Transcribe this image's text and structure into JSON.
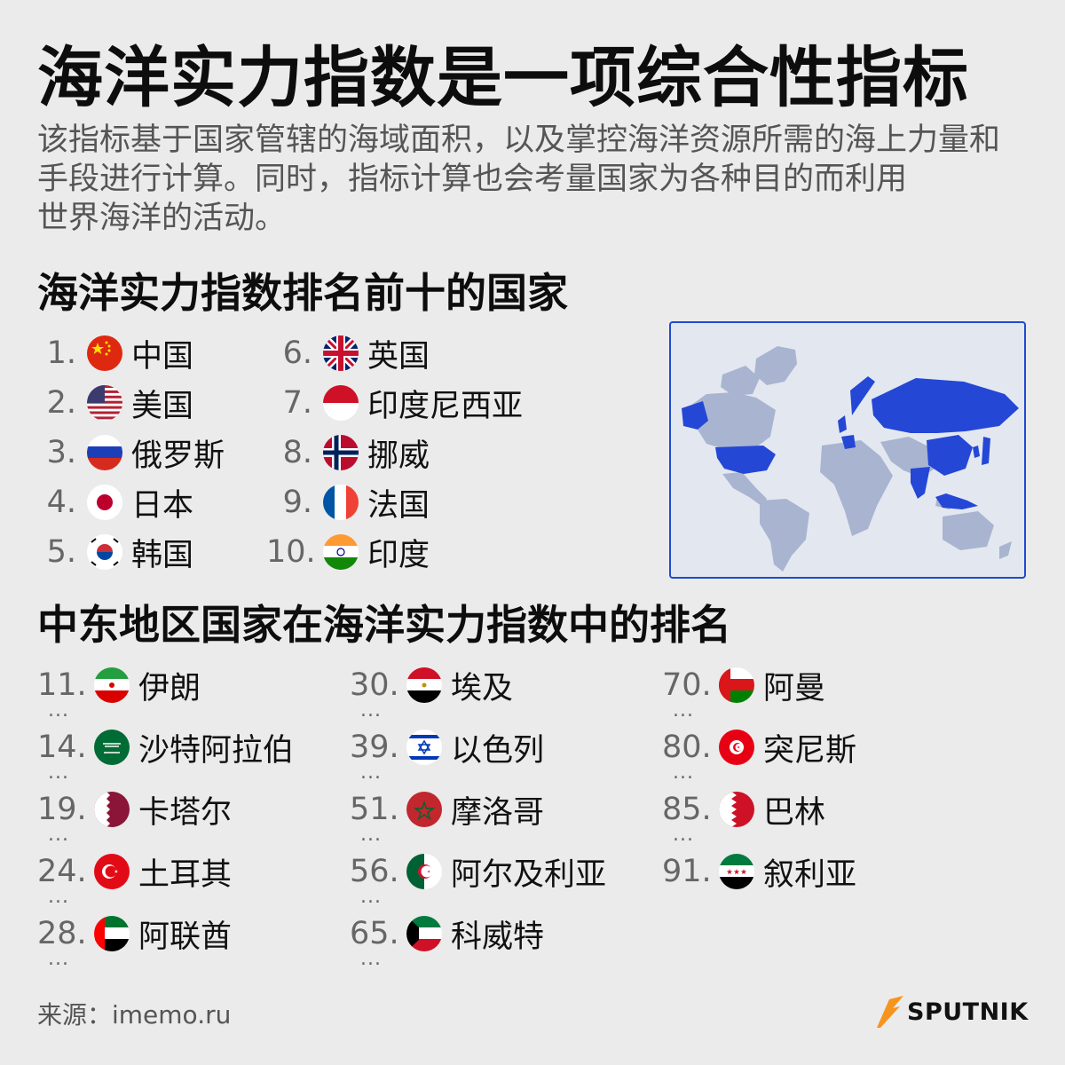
{
  "title": "海洋实力指数是一项综合性指标",
  "description": [
    "该指标基于国家管辖的海域面积，以及掌控海洋资源所需的海上力量和",
    "手段进行计算。同时，指标计算也会考量国家为各种目的而利用",
    "世界海洋的活动。"
  ],
  "top_ten": {
    "heading": "海洋实力指数排名前十的国家",
    "items": [
      {
        "rank": "1.",
        "name": "中国",
        "flag": "china-flag-icon"
      },
      {
        "rank": "2.",
        "name": "美国",
        "flag": "usa-flag-icon"
      },
      {
        "rank": "3.",
        "name": "俄罗斯",
        "flag": "russia-flag-icon"
      },
      {
        "rank": "4.",
        "name": "日本",
        "flag": "japan-flag-icon"
      },
      {
        "rank": "5.",
        "name": "韩国",
        "flag": "korea-flag-icon"
      },
      {
        "rank": "6.",
        "name": "英国",
        "flag": "uk-flag-icon"
      },
      {
        "rank": "7.",
        "name": "印度尼西亚",
        "flag": "indonesia-flag-icon"
      },
      {
        "rank": "8.",
        "name": "挪威",
        "flag": "norway-flag-icon"
      },
      {
        "rank": "9.",
        "name": "法国",
        "flag": "france-flag-icon"
      },
      {
        "rank": "10.",
        "name": "印度",
        "flag": "india-flag-icon"
      }
    ]
  },
  "middle_east": {
    "heading": "中东地区国家在海洋实力指数中的排名",
    "items": [
      {
        "rank": "11.",
        "name": "伊朗",
        "flag": "iran-flag-icon"
      },
      {
        "rank": "14.",
        "name": "沙特阿拉伯",
        "flag": "saudi-arabia-flag-icon"
      },
      {
        "rank": "19.",
        "name": "卡塔尔",
        "flag": "qatar-flag-icon"
      },
      {
        "rank": "24.",
        "name": "土耳其",
        "flag": "turkey-flag-icon"
      },
      {
        "rank": "28.",
        "name": "阿联酋",
        "flag": "uae-flag-icon"
      },
      {
        "rank": "30.",
        "name": "埃及",
        "flag": "egypt-flag-icon"
      },
      {
        "rank": "39.",
        "name": "以色列",
        "flag": "israel-flag-icon"
      },
      {
        "rank": "51.",
        "name": "摩洛哥",
        "flag": "morocco-flag-icon"
      },
      {
        "rank": "56.",
        "name": "阿尔及利亚",
        "flag": "algeria-flag-icon"
      },
      {
        "rank": "65.",
        "name": "科威特",
        "flag": "kuwait-flag-icon"
      },
      {
        "rank": "70.",
        "name": "阿曼",
        "flag": "oman-flag-icon"
      },
      {
        "rank": "80.",
        "name": "突尼斯",
        "flag": "tunisia-flag-icon"
      },
      {
        "rank": "85.",
        "name": "巴林",
        "flag": "bahrain-flag-icon"
      },
      {
        "rank": "91.",
        "name": "叙利亚",
        "flag": "syria-flag-icon"
      }
    ],
    "ellipsis": "..."
  },
  "map": {
    "icon": "world-map-icon",
    "highlight_color": "#2447d6",
    "land_color": "#a9b4d0",
    "ocean_color": "#e3e8f0"
  },
  "source": "来源：imemo.ru",
  "logo": {
    "text": "SPUTNIK",
    "icon": "sputnik-logo-icon",
    "accent": "#f7941d"
  }
}
